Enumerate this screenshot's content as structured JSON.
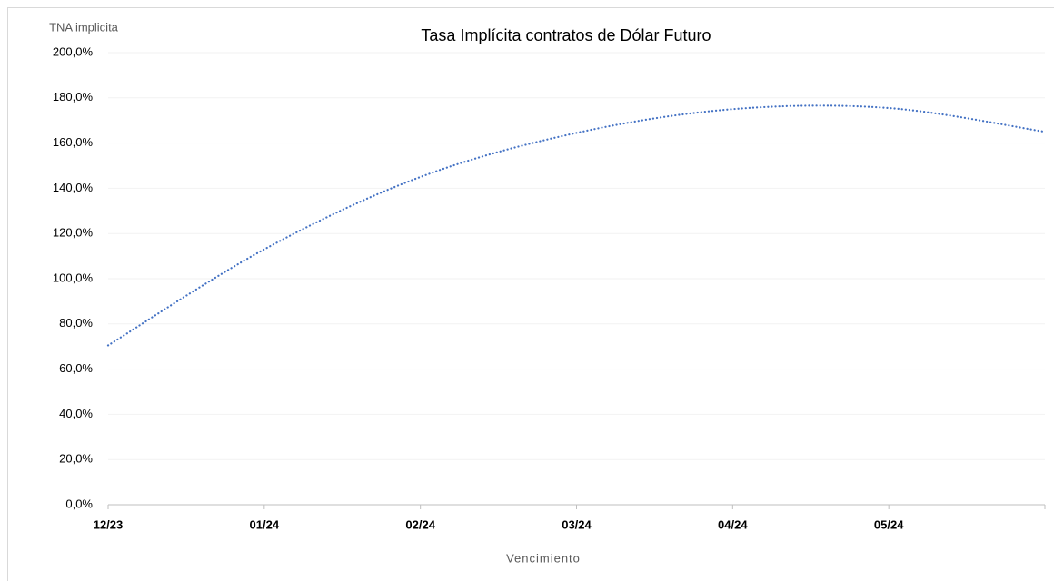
{
  "chart_data": {
    "type": "line",
    "title": "Tasa Implícita contratos de Dólar Futuro",
    "y_label": "TNA implicita",
    "x_label": "Vencimiento",
    "categories": [
      "12/23",
      "01/24",
      "02/24",
      "03/24",
      "04/24",
      "05/24",
      null
    ],
    "values": [
      70.5,
      113,
      145,
      164.5,
      175,
      175.5,
      165
    ],
    "color": "#4472c4",
    "line_style": "dotted",
    "ylim": [
      0,
      200
    ],
    "yticks": [
      {
        "value": 0,
        "label": "0,0%"
      },
      {
        "value": 20,
        "label": "20,0%"
      },
      {
        "value": 40,
        "label": "40,0%"
      },
      {
        "value": 60,
        "label": "60,0%"
      },
      {
        "value": 80,
        "label": "80,0%"
      },
      {
        "value": 100,
        "label": "100,0%"
      },
      {
        "value": 120,
        "label": "120,0%"
      },
      {
        "value": 140,
        "label": "140,0%"
      },
      {
        "value": 160,
        "label": "160,0%"
      },
      {
        "value": 180,
        "label": "180,0%"
      },
      {
        "value": 200,
        "label": "200,0%"
      }
    ],
    "grid": true
  }
}
